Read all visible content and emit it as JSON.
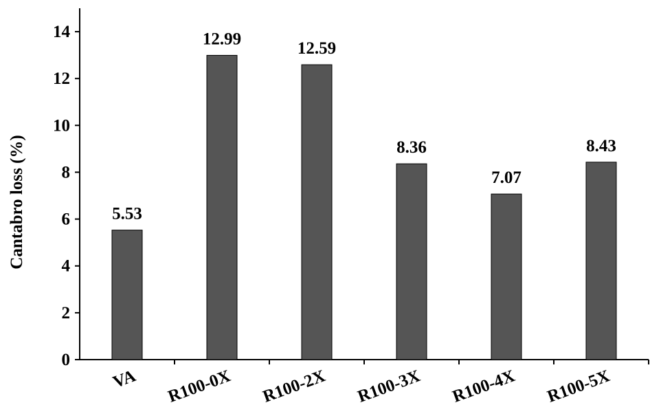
{
  "chart_data": {
    "type": "bar",
    "title": "",
    "xlabel": "",
    "ylabel": "Cantabro loss (%)",
    "categories": [
      "VA",
      "R100-0X",
      "R100-2X",
      "R100-3X",
      "R100-4X",
      "R100-5X"
    ],
    "values": [
      5.53,
      12.99,
      12.59,
      8.36,
      7.07,
      8.43
    ],
    "data_labels": [
      "5.53",
      "12.99",
      "12.59",
      "8.36",
      "7.07",
      "8.43"
    ],
    "yticks": [
      0,
      2,
      4,
      6,
      8,
      10,
      12,
      14
    ],
    "ytick_labels": [
      "0",
      "2",
      "4",
      "6",
      "8",
      "10",
      "12",
      "14"
    ],
    "ylim": [
      0,
      15
    ],
    "grid": false,
    "legend": "none",
    "bar_color": "#555555",
    "bar_edge_color": "#000000"
  }
}
